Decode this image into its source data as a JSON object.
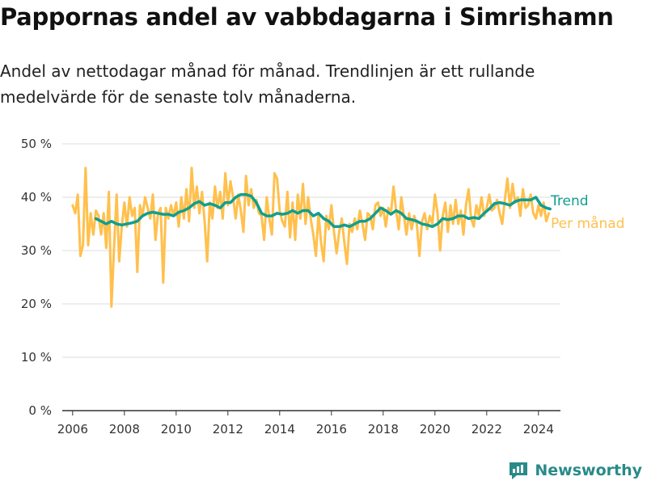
{
  "header": {
    "title": "Pappornas andel av vabbdagarna i Simrishamn",
    "subtitle": "Andel av nettodagar månad för månad. Trendlinjen är ett rullande medelvärde för de senaste tolv månaderna."
  },
  "branding": {
    "name": "Newsworthy",
    "icon": "newsworthy-logo-icon",
    "color": "#2a8a8a"
  },
  "chart_data": {
    "type": "line",
    "title": "Pappornas andel av vabbdagarna i Simrishamn",
    "subtitle": "Andel av nettodagar månad för månad. Trendlinjen är ett rullande medelvärde för de senaste tolv månaderna.",
    "xlabel": "",
    "ylabel": "",
    "xlim": [
      2005.6,
      2024.85
    ],
    "ylim": [
      0,
      50
    ],
    "x_ticks": [
      2006,
      2008,
      2010,
      2012,
      2014,
      2016,
      2018,
      2020,
      2022,
      2024
    ],
    "x_tick_labels": [
      "2006",
      "2008",
      "2010",
      "2012",
      "2014",
      "2016",
      "2018",
      "2020",
      "2022",
      "2024"
    ],
    "y_ticks": [
      0,
      10,
      20,
      30,
      40,
      50
    ],
    "y_tick_labels": [
      "0 %",
      "10 %",
      "20 %",
      "30 %",
      "40 %",
      "50 %"
    ],
    "grid": "horizontal",
    "legend": "right-inline",
    "series": [
      {
        "name": "Per månad",
        "color": "#ffc04d",
        "points": [
          [
            2006.0,
            38.5
          ],
          [
            2006.1,
            37.0
          ],
          [
            2006.2,
            40.5
          ],
          [
            2006.3,
            29.0
          ],
          [
            2006.4,
            31.0
          ],
          [
            2006.5,
            45.5
          ],
          [
            2006.6,
            31.0
          ],
          [
            2006.7,
            37.0
          ],
          [
            2006.8,
            33.0
          ],
          [
            2006.9,
            37.5
          ],
          [
            2007.0,
            36.5
          ],
          [
            2007.1,
            33.0
          ],
          [
            2007.2,
            37.0
          ],
          [
            2007.3,
            30.5
          ],
          [
            2007.4,
            41.0
          ],
          [
            2007.5,
            19.5
          ],
          [
            2007.6,
            30.5
          ],
          [
            2007.7,
            40.5
          ],
          [
            2007.8,
            28.0
          ],
          [
            2007.9,
            34.5
          ],
          [
            2008.0,
            39.0
          ],
          [
            2008.1,
            34.5
          ],
          [
            2008.2,
            40.0
          ],
          [
            2008.3,
            36.5
          ],
          [
            2008.4,
            38.0
          ],
          [
            2008.5,
            26.0
          ],
          [
            2008.6,
            38.5
          ],
          [
            2008.7,
            36.5
          ],
          [
            2008.8,
            40.0
          ],
          [
            2008.9,
            38.0
          ],
          [
            2009.0,
            36.0
          ],
          [
            2009.1,
            40.5
          ],
          [
            2009.2,
            32.0
          ],
          [
            2009.3,
            37.0
          ],
          [
            2009.4,
            38.0
          ],
          [
            2009.5,
            24.0
          ],
          [
            2009.6,
            38.0
          ],
          [
            2009.7,
            36.0
          ],
          [
            2009.8,
            38.5
          ],
          [
            2009.9,
            36.5
          ],
          [
            2010.0,
            39.0
          ],
          [
            2010.1,
            34.5
          ],
          [
            2010.2,
            40.0
          ],
          [
            2010.3,
            36.0
          ],
          [
            2010.4,
            41.5
          ],
          [
            2010.5,
            35.5
          ],
          [
            2010.6,
            45.5
          ],
          [
            2010.7,
            38.0
          ],
          [
            2010.8,
            42.0
          ],
          [
            2010.9,
            37.0
          ],
          [
            2011.0,
            41.0
          ],
          [
            2011.1,
            35.5
          ],
          [
            2011.2,
            28.0
          ],
          [
            2011.3,
            39.0
          ],
          [
            2011.4,
            36.0
          ],
          [
            2011.5,
            42.0
          ],
          [
            2011.6,
            38.0
          ],
          [
            2011.7,
            41.0
          ],
          [
            2011.8,
            36.0
          ],
          [
            2011.9,
            44.5
          ],
          [
            2012.0,
            38.5
          ],
          [
            2012.1,
            43.0
          ],
          [
            2012.2,
            40.0
          ],
          [
            2012.3,
            36.0
          ],
          [
            2012.4,
            40.5
          ],
          [
            2012.5,
            37.5
          ],
          [
            2012.6,
            33.5
          ],
          [
            2012.7,
            44.0
          ],
          [
            2012.8,
            38.5
          ],
          [
            2012.9,
            41.5
          ],
          [
            2013.0,
            38.0
          ],
          [
            2013.1,
            39.5
          ],
          [
            2013.2,
            37.0
          ],
          [
            2013.3,
            36.5
          ],
          [
            2013.4,
            32.0
          ],
          [
            2013.5,
            40.0
          ],
          [
            2013.6,
            36.0
          ],
          [
            2013.7,
            33.0
          ],
          [
            2013.8,
            44.5
          ],
          [
            2013.9,
            43.5
          ],
          [
            2014.0,
            37.5
          ],
          [
            2014.1,
            35.5
          ],
          [
            2014.2,
            34.5
          ],
          [
            2014.3,
            41.0
          ],
          [
            2014.4,
            32.5
          ],
          [
            2014.5,
            39.0
          ],
          [
            2014.6,
            32.0
          ],
          [
            2014.7,
            40.5
          ],
          [
            2014.8,
            36.0
          ],
          [
            2014.9,
            42.5
          ],
          [
            2015.0,
            35.0
          ],
          [
            2015.1,
            40.0
          ],
          [
            2015.2,
            36.0
          ],
          [
            2015.3,
            33.0
          ],
          [
            2015.4,
            29.0
          ],
          [
            2015.5,
            37.0
          ],
          [
            2015.6,
            31.5
          ],
          [
            2015.7,
            28.0
          ],
          [
            2015.8,
            36.5
          ],
          [
            2015.9,
            34.0
          ],
          [
            2016.0,
            38.5
          ],
          [
            2016.1,
            33.5
          ],
          [
            2016.2,
            29.5
          ],
          [
            2016.3,
            33.5
          ],
          [
            2016.4,
            36.0
          ],
          [
            2016.5,
            31.5
          ],
          [
            2016.6,
            27.5
          ],
          [
            2016.7,
            35.0
          ],
          [
            2016.8,
            33.5
          ],
          [
            2016.9,
            36.0
          ],
          [
            2017.0,
            34.0
          ],
          [
            2017.1,
            37.5
          ],
          [
            2017.2,
            35.0
          ],
          [
            2017.3,
            32.0
          ],
          [
            2017.4,
            37.0
          ],
          [
            2017.5,
            36.5
          ],
          [
            2017.6,
            34.0
          ],
          [
            2017.7,
            38.5
          ],
          [
            2017.8,
            39.0
          ],
          [
            2017.9,
            36.5
          ],
          [
            2018.0,
            38.0
          ],
          [
            2018.1,
            34.5
          ],
          [
            2018.2,
            38.0
          ],
          [
            2018.3,
            37.0
          ],
          [
            2018.4,
            42.0
          ],
          [
            2018.5,
            37.5
          ],
          [
            2018.6,
            34.0
          ],
          [
            2018.7,
            40.0
          ],
          [
            2018.8,
            36.5
          ],
          [
            2018.9,
            33.0
          ],
          [
            2019.0,
            37.0
          ],
          [
            2019.1,
            34.0
          ],
          [
            2019.2,
            36.5
          ],
          [
            2019.3,
            35.0
          ],
          [
            2019.4,
            29.0
          ],
          [
            2019.5,
            35.5
          ],
          [
            2019.6,
            37.0
          ],
          [
            2019.7,
            34.0
          ],
          [
            2019.8,
            36.5
          ],
          [
            2019.9,
            35.0
          ],
          [
            2020.0,
            40.5
          ],
          [
            2020.1,
            37.0
          ],
          [
            2020.2,
            30.0
          ],
          [
            2020.3,
            36.5
          ],
          [
            2020.4,
            39.0
          ],
          [
            2020.5,
            33.5
          ],
          [
            2020.6,
            38.5
          ],
          [
            2020.7,
            35.0
          ],
          [
            2020.8,
            39.5
          ],
          [
            2020.9,
            35.0
          ],
          [
            2021.0,
            37.5
          ],
          [
            2021.1,
            33.0
          ],
          [
            2021.2,
            38.5
          ],
          [
            2021.3,
            41.5
          ],
          [
            2021.4,
            36.0
          ],
          [
            2021.5,
            34.5
          ],
          [
            2021.6,
            38.5
          ],
          [
            2021.7,
            36.5
          ],
          [
            2021.8,
            40.0
          ],
          [
            2021.9,
            36.5
          ],
          [
            2022.0,
            38.0
          ],
          [
            2022.1,
            40.5
          ],
          [
            2022.2,
            37.5
          ],
          [
            2022.3,
            38.0
          ],
          [
            2022.4,
            39.5
          ],
          [
            2022.5,
            37.0
          ],
          [
            2022.6,
            35.0
          ],
          [
            2022.7,
            39.5
          ],
          [
            2022.8,
            43.5
          ],
          [
            2022.9,
            38.0
          ],
          [
            2023.0,
            42.5
          ],
          [
            2023.1,
            39.0
          ],
          [
            2023.2,
            40.0
          ],
          [
            2023.3,
            36.5
          ],
          [
            2023.4,
            41.5
          ],
          [
            2023.5,
            38.0
          ],
          [
            2023.6,
            38.5
          ],
          [
            2023.7,
            40.5
          ],
          [
            2023.8,
            37.0
          ],
          [
            2023.9,
            36.0
          ],
          [
            2024.0,
            38.5
          ],
          [
            2024.1,
            36.5
          ],
          [
            2024.2,
            39.0
          ],
          [
            2024.3,
            35.5
          ],
          [
            2024.4,
            37.0
          ]
        ]
      },
      {
        "name": "Trend",
        "color": "#119e8e",
        "points": [
          [
            2006.9,
            36.0
          ],
          [
            2007.1,
            35.5
          ],
          [
            2007.3,
            35.0
          ],
          [
            2007.5,
            35.5
          ],
          [
            2007.7,
            35.0
          ],
          [
            2007.9,
            34.8
          ],
          [
            2008.1,
            35.0
          ],
          [
            2008.3,
            35.2
          ],
          [
            2008.5,
            35.5
          ],
          [
            2008.7,
            36.5
          ],
          [
            2008.9,
            37.0
          ],
          [
            2009.1,
            37.2
          ],
          [
            2009.3,
            37.0
          ],
          [
            2009.5,
            36.8
          ],
          [
            2009.7,
            36.8
          ],
          [
            2009.9,
            36.5
          ],
          [
            2010.1,
            37.2
          ],
          [
            2010.3,
            37.5
          ],
          [
            2010.5,
            38.0
          ],
          [
            2010.7,
            38.8
          ],
          [
            2010.9,
            39.2
          ],
          [
            2011.1,
            38.5
          ],
          [
            2011.3,
            38.8
          ],
          [
            2011.5,
            38.5
          ],
          [
            2011.7,
            38.0
          ],
          [
            2011.9,
            39.0
          ],
          [
            2012.1,
            39.0
          ],
          [
            2012.3,
            40.0
          ],
          [
            2012.5,
            40.5
          ],
          [
            2012.7,
            40.5
          ],
          [
            2012.9,
            40.2
          ],
          [
            2013.1,
            39.0
          ],
          [
            2013.3,
            37.0
          ],
          [
            2013.5,
            36.5
          ],
          [
            2013.7,
            36.5
          ],
          [
            2013.9,
            37.0
          ],
          [
            2014.1,
            36.8
          ],
          [
            2014.3,
            37.0
          ],
          [
            2014.5,
            37.5
          ],
          [
            2014.7,
            37.0
          ],
          [
            2014.9,
            37.5
          ],
          [
            2015.1,
            37.5
          ],
          [
            2015.3,
            36.5
          ],
          [
            2015.5,
            37.0
          ],
          [
            2015.7,
            36.0
          ],
          [
            2015.9,
            35.5
          ],
          [
            2016.1,
            34.5
          ],
          [
            2016.3,
            34.5
          ],
          [
            2016.5,
            34.8
          ],
          [
            2016.7,
            34.5
          ],
          [
            2016.9,
            35.0
          ],
          [
            2017.1,
            35.5
          ],
          [
            2017.3,
            35.5
          ],
          [
            2017.5,
            36.0
          ],
          [
            2017.7,
            37.0
          ],
          [
            2017.9,
            38.0
          ],
          [
            2018.1,
            37.5
          ],
          [
            2018.3,
            36.8
          ],
          [
            2018.5,
            37.5
          ],
          [
            2018.7,
            37.0
          ],
          [
            2018.9,
            36.0
          ],
          [
            2019.1,
            35.8
          ],
          [
            2019.3,
            35.5
          ],
          [
            2019.5,
            35.0
          ],
          [
            2019.7,
            34.8
          ],
          [
            2019.9,
            34.5
          ],
          [
            2020.1,
            35.0
          ],
          [
            2020.3,
            36.0
          ],
          [
            2020.5,
            35.8
          ],
          [
            2020.7,
            36.0
          ],
          [
            2020.9,
            36.5
          ],
          [
            2021.1,
            36.5
          ],
          [
            2021.3,
            36.0
          ],
          [
            2021.5,
            36.2
          ],
          [
            2021.7,
            36.0
          ],
          [
            2021.9,
            37.0
          ],
          [
            2022.1,
            37.8
          ],
          [
            2022.3,
            38.8
          ],
          [
            2022.5,
            39.0
          ],
          [
            2022.7,
            38.8
          ],
          [
            2022.9,
            38.5
          ],
          [
            2023.1,
            39.2
          ],
          [
            2023.3,
            39.5
          ],
          [
            2023.5,
            39.5
          ],
          [
            2023.7,
            39.5
          ],
          [
            2023.9,
            40.0
          ],
          [
            2024.1,
            38.5
          ],
          [
            2024.3,
            38.0
          ],
          [
            2024.45,
            37.8
          ]
        ]
      }
    ]
  }
}
